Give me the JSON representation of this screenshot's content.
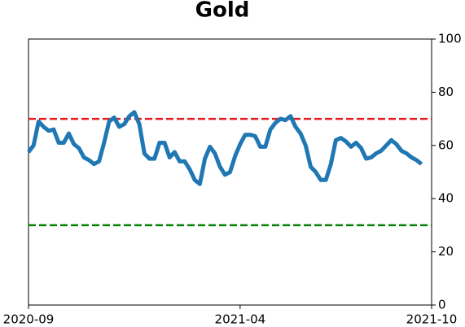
{
  "chart_data": {
    "type": "line",
    "title": "Gold",
    "categories": [
      "2020-09",
      null,
      null,
      null,
      null,
      null,
      null,
      null,
      null,
      null,
      null,
      null,
      null,
      null,
      null,
      null,
      null,
      null,
      null,
      null,
      null,
      null,
      null,
      null,
      null,
      null,
      null,
      null,
      null,
      null,
      null,
      null,
      null,
      null,
      null,
      null,
      null,
      null,
      null,
      null,
      null,
      null,
      "2021-04",
      null,
      null,
      null,
      null,
      null,
      null,
      null,
      null,
      null,
      null,
      null,
      null,
      null,
      null,
      null,
      null,
      null,
      null,
      null,
      null,
      null,
      null,
      null,
      null,
      null,
      null,
      null,
      null,
      null,
      null,
      null,
      null,
      null,
      null,
      null,
      null,
      null,
      "2021-10"
    ],
    "series": [
      {
        "color": "#1f77b4",
        "values": [
          57.5,
          60,
          69,
          67,
          65.5,
          66,
          61,
          61,
          64.5,
          60.5,
          59,
          55.5,
          54.5,
          53,
          54,
          61,
          69,
          70.5,
          67,
          68,
          71,
          72.5,
          68,
          57,
          55,
          55,
          61,
          61,
          55.5,
          57.5,
          54,
          54,
          51,
          47,
          45.5,
          55,
          59.5,
          57,
          52,
          49,
          50,
          56,
          60.5,
          64,
          64,
          63.5,
          59.5,
          59.5,
          66,
          68.5,
          70,
          69.5,
          71,
          67,
          64.5,
          60,
          52,
          50,
          47,
          47,
          53,
          62,
          62.8,
          61.5,
          59.5,
          61,
          59,
          55,
          55.5,
          57,
          58,
          60,
          62,
          60.5,
          58,
          57,
          55.5,
          54.5,
          53,
          null,
          null
        ]
      }
    ],
    "hlines": [
      {
        "value": 70,
        "color": "#e41a1c"
      },
      {
        "value": 30,
        "color": "#008000"
      }
    ],
    "ylim": [
      0,
      100
    ],
    "yticks": [
      0,
      20,
      40,
      60,
      80,
      100
    ]
  }
}
